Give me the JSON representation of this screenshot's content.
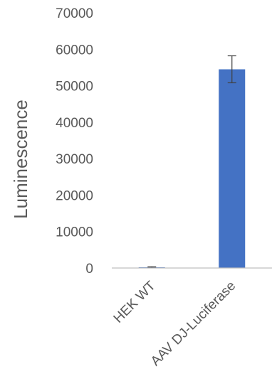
{
  "chart_data": {
    "type": "bar",
    "title": "",
    "xlabel": "",
    "ylabel": "Luminescence",
    "ylim": [
      0,
      70000
    ],
    "yticks": [
      0,
      10000,
      20000,
      30000,
      40000,
      50000,
      60000,
      70000
    ],
    "categories": [
      "HEK WT",
      "AAV DJ-Luciferase"
    ],
    "values": [
      200,
      54500
    ],
    "error_bars": [
      150,
      3700
    ],
    "grid": false,
    "legend": "none",
    "bar_color": "#4472C4",
    "axis_color": "#BFBFBF",
    "text_color": "#595959"
  }
}
